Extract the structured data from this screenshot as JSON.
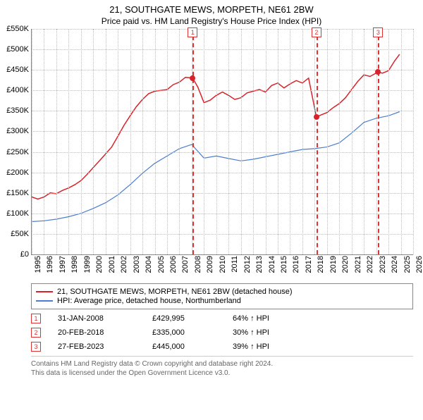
{
  "title": "21, SOUTHGATE MEWS, MORPETH, NE61 2BW",
  "subtitle": "Price paid vs. HM Land Registry's House Price Index (HPI)",
  "chart": {
    "type": "line",
    "ylim": [
      0,
      550000
    ],
    "xlim": [
      1995,
      2026
    ],
    "ytick_step": 50000,
    "xtick_step": 1,
    "y_prefix": "£",
    "y_suffix": "K",
    "grid_color": "#bbbbbb",
    "background_color": "#ffffff",
    "series": [
      {
        "name": "21, SOUTHGATE MEWS, MORPETH, NE61 2BW (detached house)",
        "color": "#d8232a",
        "line_width": 1.5,
        "data": [
          [
            1995,
            140000
          ],
          [
            1995.5,
            135000
          ],
          [
            1996,
            140000
          ],
          [
            1996.5,
            150000
          ],
          [
            1997,
            148000
          ],
          [
            1997.5,
            156000
          ],
          [
            1998,
            162000
          ],
          [
            1998.5,
            170000
          ],
          [
            1999,
            180000
          ],
          [
            1999.5,
            195000
          ],
          [
            2000,
            212000
          ],
          [
            2000.5,
            228000
          ],
          [
            2001,
            245000
          ],
          [
            2001.5,
            262000
          ],
          [
            2002,
            288000
          ],
          [
            2002.5,
            315000
          ],
          [
            2003,
            338000
          ],
          [
            2003.5,
            360000
          ],
          [
            2004,
            378000
          ],
          [
            2004.5,
            392000
          ],
          [
            2005,
            398000
          ],
          [
            2005.5,
            400000
          ],
          [
            2006,
            402000
          ],
          [
            2006.5,
            414000
          ],
          [
            2007,
            420000
          ],
          [
            2007.5,
            432000
          ],
          [
            2008.08,
            429995
          ],
          [
            2008.5,
            408000
          ],
          [
            2009,
            370000
          ],
          [
            2009.5,
            376000
          ],
          [
            2010,
            388000
          ],
          [
            2010.5,
            396000
          ],
          [
            2011,
            388000
          ],
          [
            2011.5,
            378000
          ],
          [
            2012,
            382000
          ],
          [
            2012.5,
            394000
          ],
          [
            2013,
            398000
          ],
          [
            2013.5,
            402000
          ],
          [
            2014,
            396000
          ],
          [
            2014.5,
            412000
          ],
          [
            2015,
            418000
          ],
          [
            2015.5,
            406000
          ],
          [
            2016,
            416000
          ],
          [
            2016.5,
            424000
          ],
          [
            2017,
            418000
          ],
          [
            2017.5,
            430000
          ],
          [
            2018.14,
            335000
          ],
          [
            2018.5,
            340000
          ],
          [
            2019,
            346000
          ],
          [
            2019.5,
            358000
          ],
          [
            2020,
            368000
          ],
          [
            2020.5,
            382000
          ],
          [
            2021,
            402000
          ],
          [
            2021.5,
            422000
          ],
          [
            2022,
            438000
          ],
          [
            2022.5,
            434000
          ],
          [
            2023.16,
            445000
          ],
          [
            2023.5,
            442000
          ],
          [
            2024,
            448000
          ],
          [
            2024.5,
            472000
          ],
          [
            2024.9,
            488000
          ]
        ]
      },
      {
        "name": "HPI: Average price, detached house, Northumberland",
        "color": "#4a7fcf",
        "line_width": 1.2,
        "data": [
          [
            1995,
            80000
          ],
          [
            1996,
            82000
          ],
          [
            1997,
            86000
          ],
          [
            1998,
            92000
          ],
          [
            1999,
            100000
          ],
          [
            2000,
            112000
          ],
          [
            2001,
            126000
          ],
          [
            2002,
            145000
          ],
          [
            2003,
            170000
          ],
          [
            2004,
            198000
          ],
          [
            2005,
            222000
          ],
          [
            2006,
            240000
          ],
          [
            2007,
            258000
          ],
          [
            2008,
            268000
          ],
          [
            2009,
            235000
          ],
          [
            2010,
            240000
          ],
          [
            2011,
            234000
          ],
          [
            2012,
            228000
          ],
          [
            2013,
            232000
          ],
          [
            2014,
            238000
          ],
          [
            2015,
            244000
          ],
          [
            2016,
            250000
          ],
          [
            2017,
            256000
          ],
          [
            2018,
            258000
          ],
          [
            2019,
            262000
          ],
          [
            2020,
            272000
          ],
          [
            2021,
            296000
          ],
          [
            2022,
            322000
          ],
          [
            2023,
            332000
          ],
          [
            2024,
            338000
          ],
          [
            2024.9,
            348000
          ]
        ]
      }
    ],
    "markers": [
      {
        "n": "1",
        "year": 2008.08,
        "dot_color": "#d8232a"
      },
      {
        "n": "2",
        "year": 2018.14,
        "dot_color": "#d8232a"
      },
      {
        "n": "3",
        "year": 2023.16,
        "dot_color": "#d8232a"
      }
    ]
  },
  "legend": {
    "items": [
      {
        "color": "#d8232a",
        "label": "21, SOUTHGATE MEWS, MORPETH, NE61 2BW (detached house)"
      },
      {
        "color": "#4a7fcf",
        "label": "HPI: Average price, detached house, Northumberland"
      }
    ]
  },
  "events": [
    {
      "n": "1",
      "date": "31-JAN-2008",
      "price": "£429,995",
      "delta": "64% ↑ HPI"
    },
    {
      "n": "2",
      "date": "20-FEB-2018",
      "price": "£335,000",
      "delta": "30% ↑ HPI"
    },
    {
      "n": "3",
      "date": "27-FEB-2023",
      "price": "£445,000",
      "delta": "39% ↑ HPI"
    }
  ],
  "footer": {
    "line1": "Contains HM Land Registry data © Crown copyright and database right 2024.",
    "line2": "This data is licensed under the Open Government Licence v3.0."
  }
}
